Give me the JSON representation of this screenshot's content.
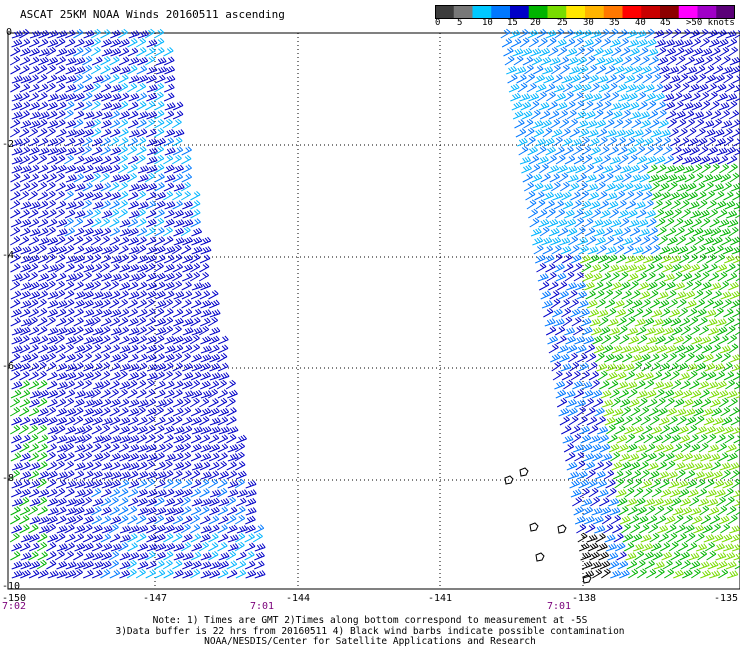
{
  "title": "ASCAT 25KM NOAA Winds 20160511 ascending",
  "colorbar": {
    "labels": [
      "0",
      "5",
      "10",
      "15",
      "20",
      "25",
      "30",
      "35",
      "40",
      "45",
      ">50 knots"
    ],
    "colors": [
      "#3c3c3c",
      "#787878",
      "#00c8ff",
      "#0078ff",
      "#0000c8",
      "#00b400",
      "#78dc00",
      "#ffe600",
      "#ffb400",
      "#ff7800",
      "#ff0000",
      "#c80000",
      "#8c0000",
      "#ff00ff",
      "#a000c8",
      "#5a0078"
    ]
  },
  "axes": {
    "lat_labels": [
      "0",
      "-2",
      "-4",
      "-6",
      "-8",
      "-10"
    ],
    "lon_labels": [
      "-150",
      "-147",
      "-144",
      "-141",
      "-138",
      "-135"
    ]
  },
  "times": [
    "7:02",
    "7:01",
    "7:01"
  ],
  "notes": [
    "Note: 1) Times are GMT 2)Times along bottom correspond to measurement at -5S",
    "3)Data buffer is 22 hrs from 20160511 4) Black wind barbs indicate possible contamination",
    "NOAA/NESDIS/Center for Satellite Applications and Research"
  ]
}
